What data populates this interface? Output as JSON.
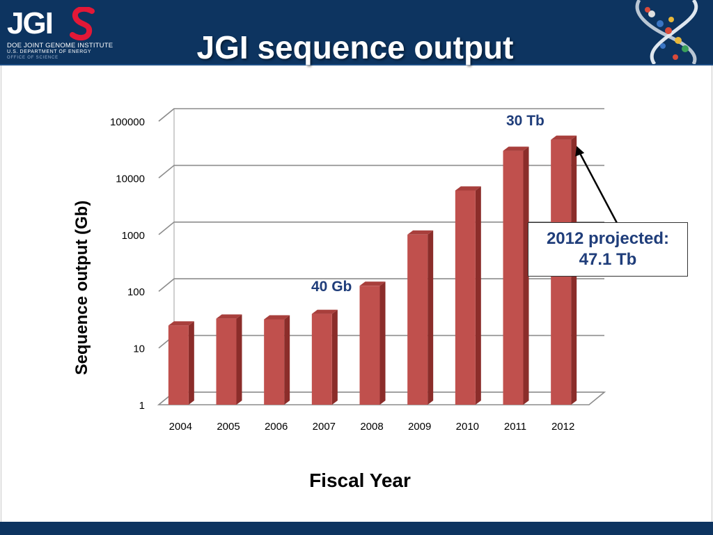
{
  "header": {
    "title": "JGI sequence output",
    "logo": {
      "word": "JGI",
      "line1": "DOE JOINT GENOME INSTITUTE",
      "line2": "U.S. DEPARTMENT OF ENERGY",
      "line3": "OFFICE OF SCIENCE"
    }
  },
  "colors": {
    "navy": "#0d3460",
    "bar_front": "#c0504d",
    "bar_side": "#8b2d2a",
    "bar_top": "#a83f3c",
    "annotation": "#1f3d7a",
    "logo_red": "#e31837"
  },
  "annotations": {
    "peak_2011": "30 Tb",
    "value_2007": "40 Gb",
    "projected_line1": "2012 projected:",
    "projected_line2": "47.1 Tb"
  },
  "chart_data": {
    "type": "bar",
    "title": "JGI sequence output",
    "xlabel": "Fiscal Year",
    "ylabel": "Sequence output (Gb)",
    "yscale": "log",
    "ylim": [
      1,
      100000
    ],
    "yticks": [
      1,
      10,
      100,
      1000,
      10000,
      100000
    ],
    "ytick_labels": [
      "1",
      "10",
      "100",
      "1000",
      "10000",
      "100000"
    ],
    "grid": true,
    "style": "3d-column",
    "categories": [
      "2004",
      "2005",
      "2006",
      "2007",
      "2008",
      "2009",
      "2010",
      "2011",
      "2012"
    ],
    "values": [
      25,
      33,
      32,
      40,
      125,
      1000,
      6000,
      30000,
      47100
    ]
  }
}
